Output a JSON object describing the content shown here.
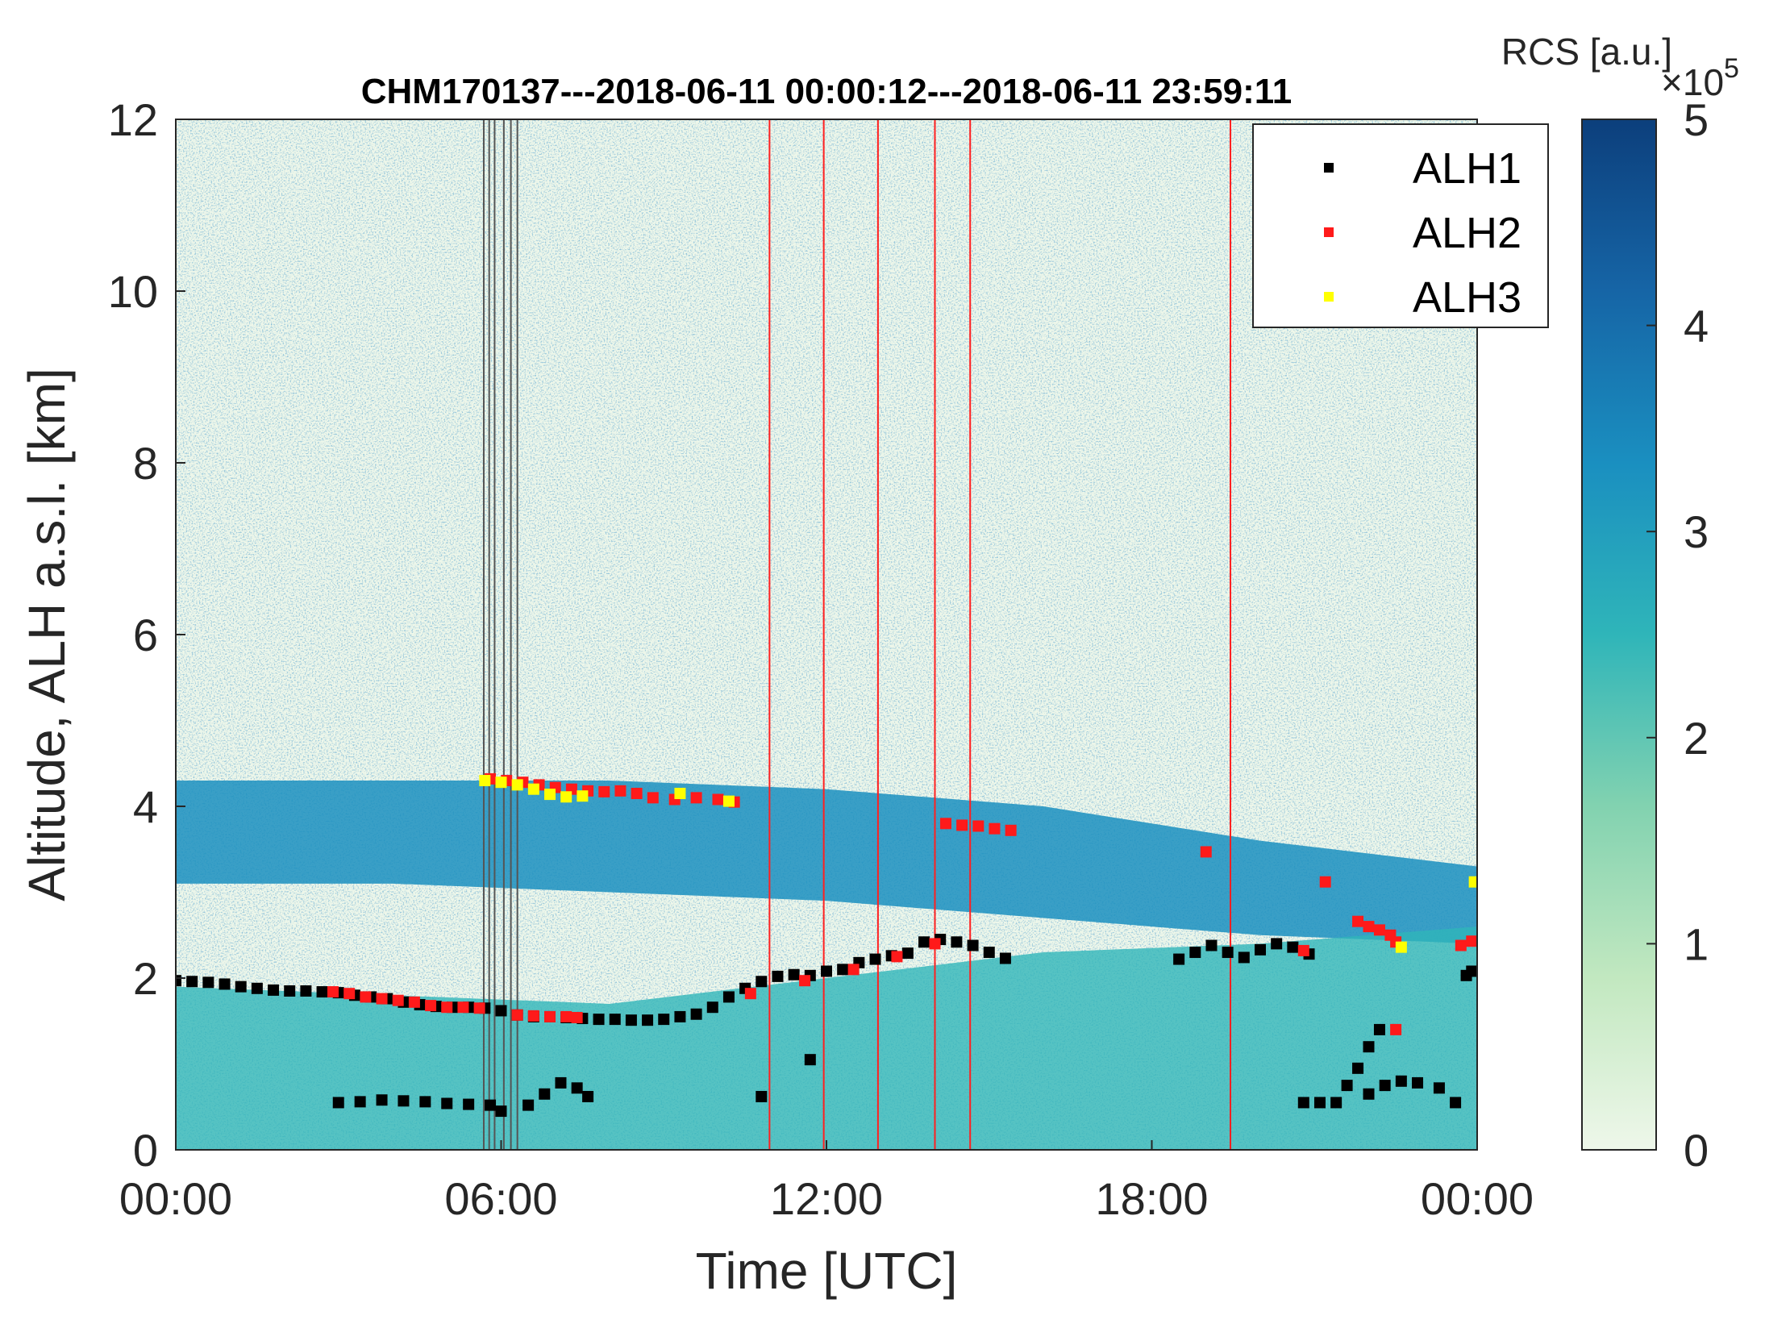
{
  "chart_data": {
    "type": "heatmap",
    "title": "CHM170137---2018-06-11 00:00:12---2018-06-11 23:59:11",
    "xlabel": "Time [UTC]",
    "ylabel": "Altitude, ALH a.s.l. [km]",
    "xlim": [
      0,
      24
    ],
    "ylim": [
      0,
      12
    ],
    "x_ticks": [
      0,
      6,
      12,
      18,
      24
    ],
    "x_tick_labels": [
      "00:00",
      "06:00",
      "12:00",
      "18:00",
      "00:00"
    ],
    "y_ticks": [
      0,
      2,
      4,
      6,
      8,
      10,
      12
    ],
    "y_tick_labels": [
      "0",
      "2",
      "4",
      "6",
      "8",
      "10",
      "12"
    ],
    "colorbar": {
      "label": "RCS [a.u.]",
      "multiplier_base": "×10",
      "multiplier_exp": "5",
      "range": [
        0,
        5
      ],
      "ticks": [
        0,
        1,
        2,
        3,
        4,
        5
      ],
      "tick_labels": [
        "0",
        "1",
        "2",
        "3",
        "4",
        "5"
      ],
      "colormap": [
        "#eef7ea",
        "#c2e8c0",
        "#82d2b0",
        "#2fb5b9",
        "#1a8fc0",
        "#1665a6",
        "#0c3f7c"
      ]
    },
    "legend": {
      "placement": "top-right",
      "entries": [
        {
          "name": "ALH1",
          "color": "#000000"
        },
        {
          "name": "ALH2",
          "color": "#ff1a1a"
        },
        {
          "name": "ALH3",
          "color": "#ffff00"
        }
      ]
    },
    "vertical_lines": {
      "gray": [
        5.68,
        5.78,
        5.88,
        6.05,
        6.18,
        6.3
      ],
      "red": [
        10.95,
        11.95,
        12.95,
        14.0,
        14.65,
        19.45
      ]
    },
    "background_layers": [
      {
        "name": "aerosol_layer",
        "x0": 0,
        "x1": 24,
        "y_bottom": [
          3.1,
          3.1,
          3.0,
          2.9,
          2.7,
          2.5,
          2.4
        ],
        "y_top": [
          4.3,
          4.3,
          4.3,
          4.2,
          4.0,
          3.6,
          3.3
        ],
        "intensity": 3.5
      },
      {
        "name": "boundary_layer",
        "x0": 0,
        "x1": 24,
        "y_top": [
          1.9,
          1.8,
          1.7,
          2.0,
          2.3,
          2.4,
          2.6
        ],
        "intensity": 2.5
      }
    ],
    "series": [
      {
        "name": "ALH1",
        "points": [
          [
            0.0,
            1.97
          ],
          [
            0.3,
            1.96
          ],
          [
            0.6,
            1.95
          ],
          [
            0.9,
            1.93
          ],
          [
            1.2,
            1.9
          ],
          [
            1.5,
            1.88
          ],
          [
            1.8,
            1.86
          ],
          [
            2.1,
            1.85
          ],
          [
            2.4,
            1.85
          ],
          [
            2.7,
            1.84
          ],
          [
            3.0,
            1.83
          ],
          [
            3.3,
            1.8
          ],
          [
            3.6,
            1.78
          ],
          [
            3.9,
            1.76
          ],
          [
            4.2,
            1.72
          ],
          [
            4.5,
            1.69
          ],
          [
            4.8,
            1.67
          ],
          [
            5.1,
            1.66
          ],
          [
            5.4,
            1.66
          ],
          [
            5.7,
            1.65
          ],
          [
            6.0,
            1.62
          ],
          [
            6.3,
            1.57
          ],
          [
            6.6,
            1.55
          ],
          [
            6.9,
            1.55
          ],
          [
            7.2,
            1.54
          ],
          [
            7.5,
            1.53
          ],
          [
            7.8,
            1.52
          ],
          [
            8.1,
            1.52
          ],
          [
            8.4,
            1.51
          ],
          [
            8.7,
            1.51
          ],
          [
            9.0,
            1.52
          ],
          [
            9.3,
            1.55
          ],
          [
            9.6,
            1.58
          ],
          [
            9.9,
            1.66
          ],
          [
            10.2,
            1.78
          ],
          [
            10.5,
            1.88
          ],
          [
            10.8,
            1.96
          ],
          [
            11.1,
            2.02
          ],
          [
            11.4,
            2.04
          ],
          [
            11.7,
            2.03
          ],
          [
            12.0,
            2.08
          ],
          [
            12.3,
            2.1
          ],
          [
            12.6,
            2.18
          ],
          [
            12.9,
            2.22
          ],
          [
            13.2,
            2.26
          ],
          [
            13.5,
            2.29
          ],
          [
            13.8,
            2.42
          ],
          [
            14.1,
            2.45
          ],
          [
            14.4,
            2.42
          ],
          [
            14.7,
            2.38
          ],
          [
            15.0,
            2.3
          ],
          [
            15.3,
            2.23
          ],
          [
            18.5,
            2.22
          ],
          [
            18.8,
            2.3
          ],
          [
            19.1,
            2.38
          ],
          [
            19.4,
            2.3
          ],
          [
            19.7,
            2.24
          ],
          [
            20.0,
            2.33
          ],
          [
            20.3,
            2.4
          ],
          [
            20.6,
            2.36
          ],
          [
            20.9,
            2.28
          ],
          [
            23.8,
            2.03
          ],
          [
            23.9,
            2.08
          ],
          [
            3.0,
            0.55
          ],
          [
            3.4,
            0.56
          ],
          [
            3.8,
            0.58
          ],
          [
            4.2,
            0.57
          ],
          [
            4.6,
            0.56
          ],
          [
            5.0,
            0.54
          ],
          [
            5.4,
            0.53
          ],
          [
            5.8,
            0.52
          ],
          [
            6.0,
            0.45
          ],
          [
            6.5,
            0.52
          ],
          [
            6.8,
            0.65
          ],
          [
            7.1,
            0.78
          ],
          [
            7.4,
            0.72
          ],
          [
            7.6,
            0.62
          ],
          [
            10.8,
            0.62
          ],
          [
            11.7,
            1.05
          ],
          [
            20.8,
            0.55
          ],
          [
            21.1,
            0.55
          ],
          [
            21.4,
            0.55
          ],
          [
            21.6,
            0.75
          ],
          [
            21.8,
            0.95
          ],
          [
            22.0,
            1.2
          ],
          [
            22.2,
            1.4
          ],
          [
            22.0,
            0.65
          ],
          [
            22.3,
            0.75
          ],
          [
            22.6,
            0.8
          ],
          [
            22.9,
            0.78
          ],
          [
            23.3,
            0.72
          ],
          [
            23.6,
            0.55
          ]
        ]
      },
      {
        "name": "ALH2",
        "points": [
          [
            2.9,
            1.84
          ],
          [
            3.2,
            1.82
          ],
          [
            3.5,
            1.78
          ],
          [
            3.8,
            1.76
          ],
          [
            4.1,
            1.74
          ],
          [
            4.4,
            1.72
          ],
          [
            4.7,
            1.68
          ],
          [
            5.0,
            1.66
          ],
          [
            5.3,
            1.66
          ],
          [
            5.6,
            1.65
          ],
          [
            6.3,
            1.57
          ],
          [
            6.6,
            1.56
          ],
          [
            6.9,
            1.55
          ],
          [
            7.2,
            1.55
          ],
          [
            7.4,
            1.54
          ],
          [
            5.8,
            4.32
          ],
          [
            6.1,
            4.3
          ],
          [
            6.4,
            4.28
          ],
          [
            6.7,
            4.25
          ],
          [
            7.0,
            4.22
          ],
          [
            7.3,
            4.2
          ],
          [
            7.6,
            4.18
          ],
          [
            7.9,
            4.17
          ],
          [
            8.2,
            4.18
          ],
          [
            8.5,
            4.15
          ],
          [
            8.8,
            4.1
          ],
          [
            9.2,
            4.08
          ],
          [
            9.6,
            4.1
          ],
          [
            10.0,
            4.08
          ],
          [
            10.3,
            4.05
          ],
          [
            14.2,
            3.8
          ],
          [
            14.5,
            3.78
          ],
          [
            14.8,
            3.77
          ],
          [
            15.1,
            3.74
          ],
          [
            15.4,
            3.72
          ],
          [
            19.0,
            3.47
          ],
          [
            21.2,
            3.12
          ],
          [
            21.8,
            2.66
          ],
          [
            22.0,
            2.6
          ],
          [
            22.2,
            2.56
          ],
          [
            22.4,
            2.5
          ],
          [
            22.5,
            2.42
          ],
          [
            22.5,
            1.4
          ],
          [
            23.7,
            2.38
          ],
          [
            23.9,
            2.43
          ],
          [
            10.6,
            1.82
          ],
          [
            11.6,
            1.97
          ],
          [
            12.5,
            2.1
          ],
          [
            13.3,
            2.25
          ],
          [
            14.0,
            2.4
          ],
          [
            20.8,
            2.32
          ]
        ]
      },
      {
        "name": "ALH3",
        "points": [
          [
            5.7,
            4.3
          ],
          [
            6.0,
            4.28
          ],
          [
            6.3,
            4.25
          ],
          [
            6.6,
            4.2
          ],
          [
            6.9,
            4.14
          ],
          [
            7.2,
            4.11
          ],
          [
            7.5,
            4.12
          ],
          [
            9.3,
            4.15
          ],
          [
            10.2,
            4.06
          ],
          [
            22.6,
            2.36
          ],
          [
            23.95,
            3.12
          ]
        ]
      }
    ]
  }
}
